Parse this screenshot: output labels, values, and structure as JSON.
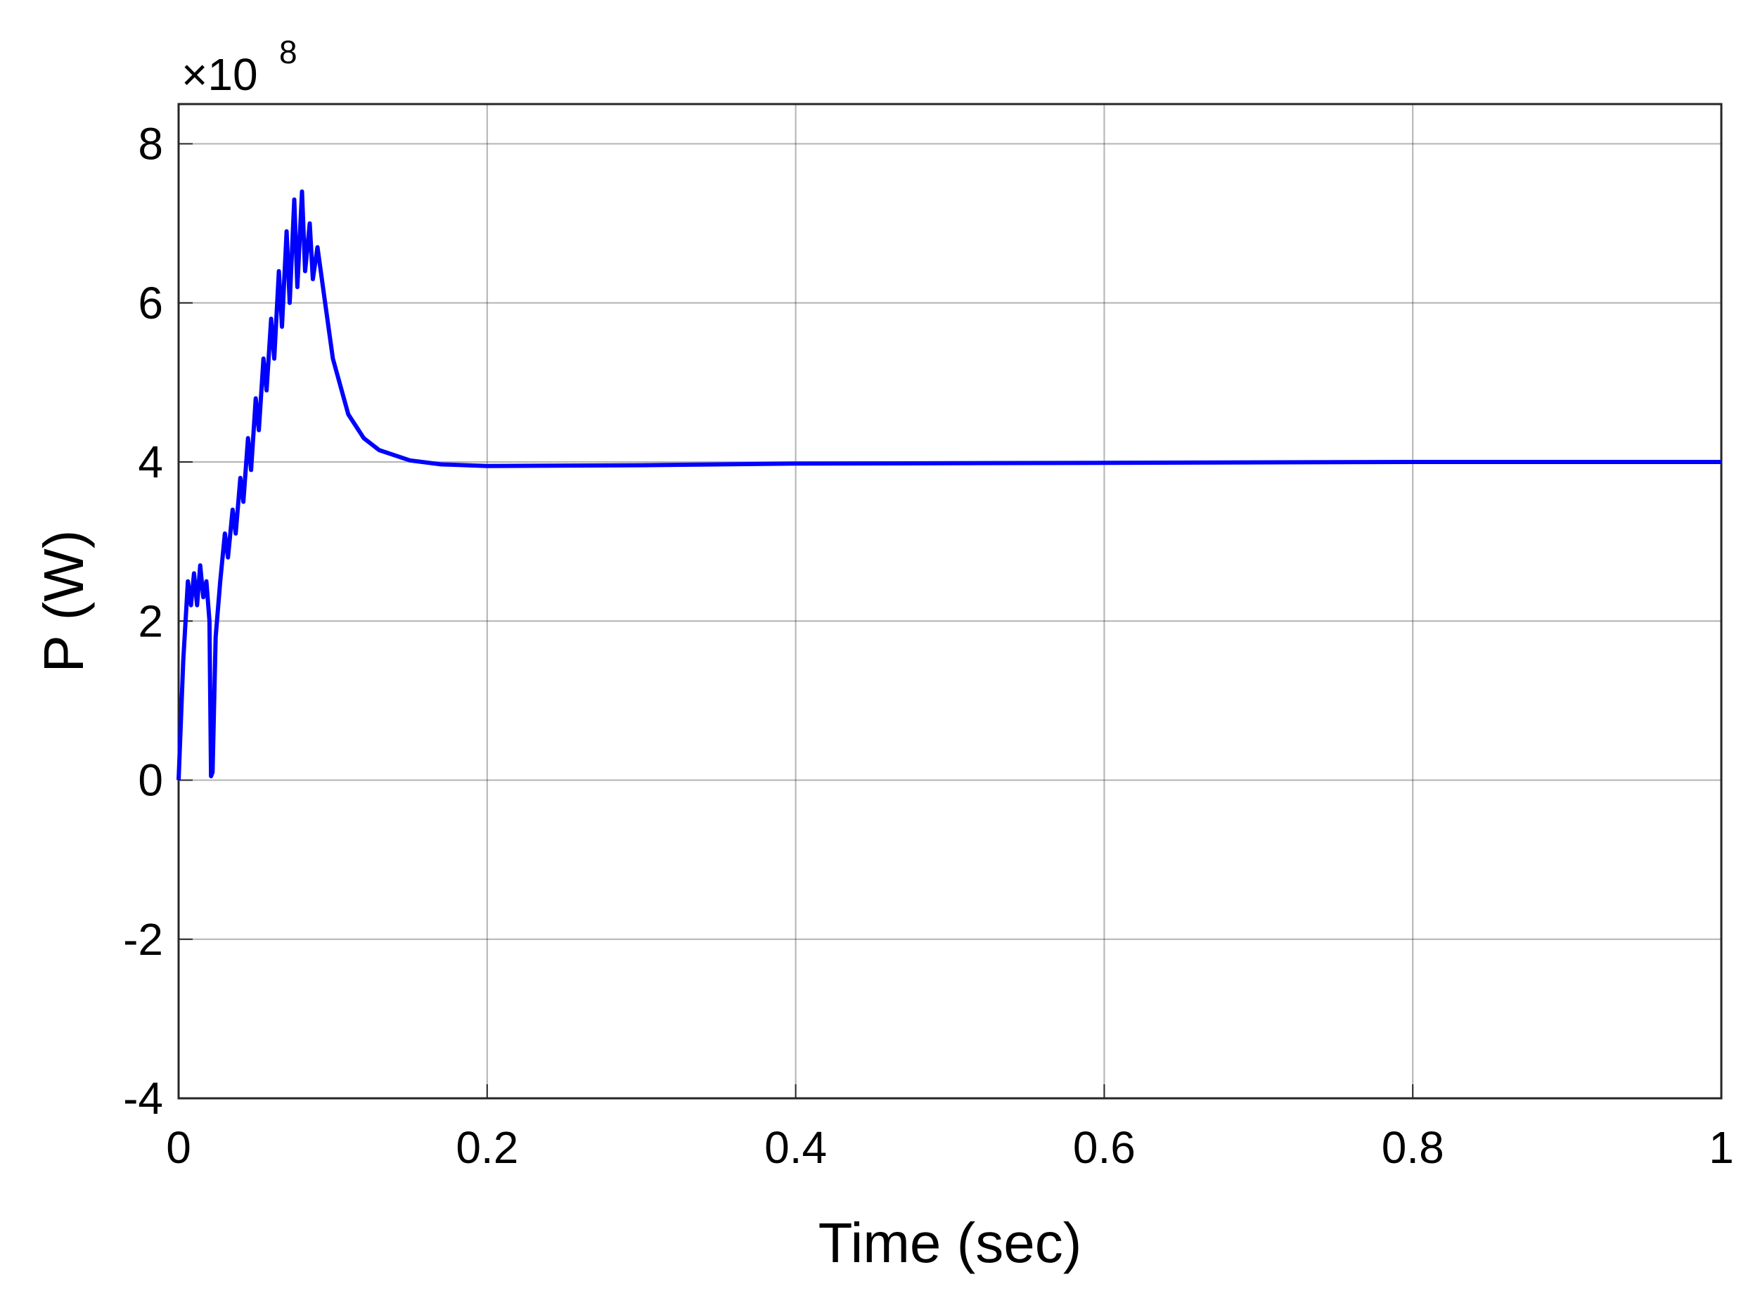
{
  "chart_data": {
    "type": "line",
    "x_label": "Time (sec)",
    "y_label": "P (W)",
    "y_scale_base": "×10",
    "y_scale_exponent": "8",
    "xlim": [
      0,
      1
    ],
    "ylim": [
      -4,
      8.5
    ],
    "xticks": [
      0,
      0.2,
      0.4,
      0.6,
      0.8,
      1
    ],
    "yticks": [
      -4,
      -2,
      0,
      2,
      4,
      6,
      8
    ],
    "grid": true,
    "series": [
      {
        "color": "#0000ff",
        "x": [
          0,
          0.003,
          0.006,
          0.008,
          0.01,
          0.012,
          0.014,
          0.016,
          0.018,
          0.02,
          0.021,
          0.022,
          0.024,
          0.027,
          0.03,
          0.032,
          0.035,
          0.037,
          0.04,
          0.042,
          0.045,
          0.047,
          0.05,
          0.052,
          0.055,
          0.057,
          0.06,
          0.062,
          0.065,
          0.067,
          0.07,
          0.072,
          0.075,
          0.077,
          0.08,
          0.082,
          0.085,
          0.087,
          0.09,
          0.095,
          0.1,
          0.11,
          0.12,
          0.13,
          0.15,
          0.17,
          0.2,
          0.3,
          0.4,
          0.6,
          0.8,
          1.0
        ],
        "values": [
          0,
          1.5,
          2.5,
          2.2,
          2.6,
          2.2,
          2.7,
          2.3,
          2.5,
          2.0,
          0.05,
          0.1,
          1.8,
          2.5,
          3.1,
          2.8,
          3.4,
          3.1,
          3.8,
          3.5,
          4.3,
          3.9,
          4.8,
          4.4,
          5.3,
          4.9,
          5.8,
          5.3,
          6.4,
          5.7,
          6.9,
          6.0,
          7.3,
          6.2,
          7.4,
          6.4,
          7.0,
          6.3,
          6.7,
          6.0,
          5.3,
          4.6,
          4.3,
          4.15,
          4.02,
          3.97,
          3.95,
          3.96,
          3.98,
          3.99,
          4.0,
          4.0
        ]
      }
    ]
  }
}
